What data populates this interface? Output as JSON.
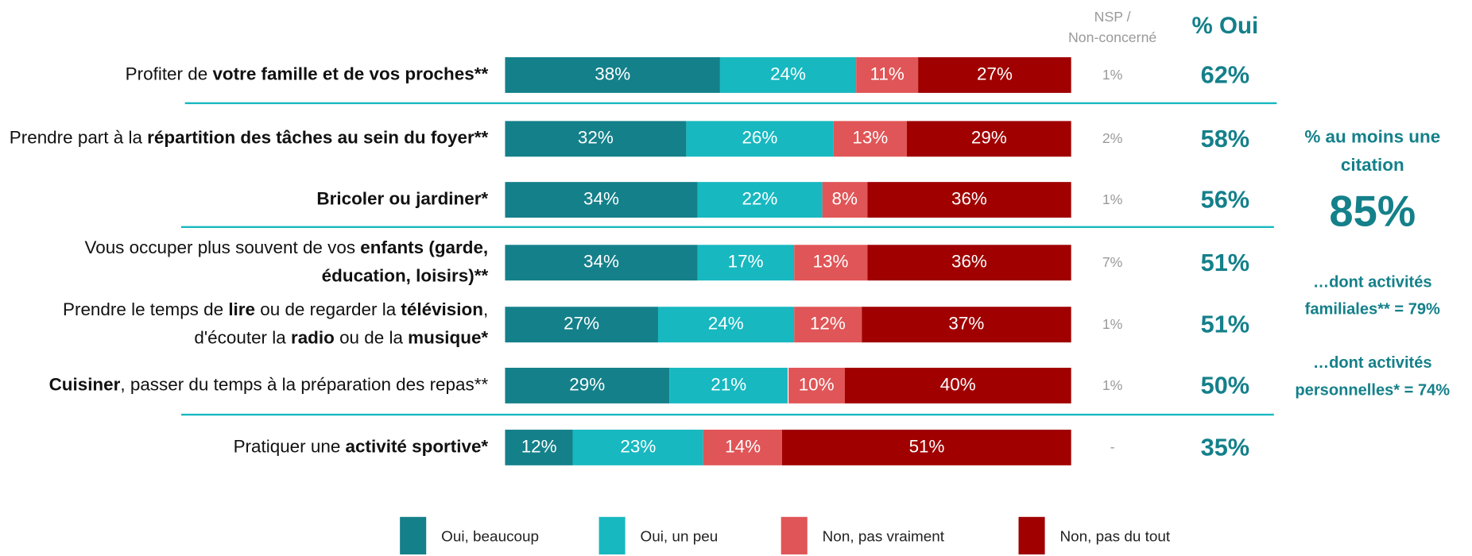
{
  "chart_data": {
    "type": "stacked-bar-horizontal",
    "categories": [
      [
        {
          "text": "Profiter de ",
          "bold": false
        },
        {
          "text": "votre famille et de vos proches**",
          "bold": true
        }
      ],
      [
        {
          "text": "Prendre part à la ",
          "bold": false
        },
        {
          "text": "répartition des tâches au sein du foyer**",
          "bold": true
        }
      ],
      [
        {
          "text": "Bricoler ou jardiner*",
          "bold": true
        }
      ],
      [
        {
          "text": "Vous occuper plus souvent de vos ",
          "bold": false
        },
        {
          "text": "enfants (garde, éducation, loisirs)**",
          "bold": true
        }
      ],
      [
        {
          "text": "Prendre le temps de ",
          "bold": false
        },
        {
          "text": "lire",
          "bold": true
        },
        {
          "text": " ou de regarder la ",
          "bold": false
        },
        {
          "text": "télévision",
          "bold": true
        },
        {
          "text": ", d'écouter la ",
          "bold": false
        },
        {
          "text": "radio",
          "bold": true
        },
        {
          "text": " ou de la ",
          "bold": false
        },
        {
          "text": "musique*",
          "bold": true
        }
      ],
      [
        {
          "text": "Cuisiner",
          "bold": true
        },
        {
          "text": ", passer du temps à la préparation des repas**",
          "bold": false
        }
      ],
      [
        {
          "text": "Pratiquer une ",
          "bold": false
        },
        {
          "text": "activité sportive*",
          "bold": true
        }
      ]
    ],
    "xlim": [
      0,
      100
    ],
    "series": [
      {
        "name": "Oui, beaucoup",
        "color": "#14808a",
        "values": [
          38,
          32,
          34,
          34,
          27,
          29,
          12
        ],
        "value_labels": [
          "38%",
          "32%",
          "34%",
          "34%",
          "27%",
          "29%",
          "12%"
        ]
      },
      {
        "name": "Oui, un peu",
        "color": "#17b8c0",
        "values": [
          24,
          26,
          22,
          17,
          24,
          21,
          23
        ],
        "value_labels": [
          "24%",
          "26%",
          "22%",
          "17%",
          "24%",
          "21%",
          "23%"
        ]
      },
      {
        "name": "Non, pas vraiment",
        "color": "#e05557",
        "values": [
          11,
          13,
          8,
          13,
          12,
          10,
          14
        ],
        "value_labels": [
          "11%",
          "13%",
          "8%",
          "13%",
          "12%",
          "10%",
          "14%"
        ]
      },
      {
        "name": "Non, pas du tout",
        "color": "#a00000",
        "values": [
          27,
          29,
          36,
          36,
          37,
          40,
          51
        ],
        "value_labels": [
          "27%",
          "29%",
          "36%",
          "36%",
          "37%",
          "40%",
          "51%"
        ]
      }
    ],
    "nsp": {
      "title": [
        "NSP /",
        "Non-concerné"
      ],
      "values": [
        1,
        2,
        1,
        7,
        1,
        1,
        null
      ],
      "value_labels": [
        "1%",
        "2%",
        "1%",
        "7%",
        "1%",
        "1%",
        "-"
      ]
    },
    "oui": {
      "title": "% Oui",
      "values": [
        62,
        58,
        56,
        51,
        51,
        50,
        35
      ],
      "value_labels": [
        "62%",
        "58%",
        "56%",
        "51%",
        "51%",
        "50%",
        "35%"
      ]
    },
    "side": {
      "title": "% au moins une citation",
      "value": 85,
      "value_label": "85%",
      "notes": [
        "…dont activités familiales** = 79%",
        "…dont activités personnelles* = 74%"
      ]
    }
  }
}
